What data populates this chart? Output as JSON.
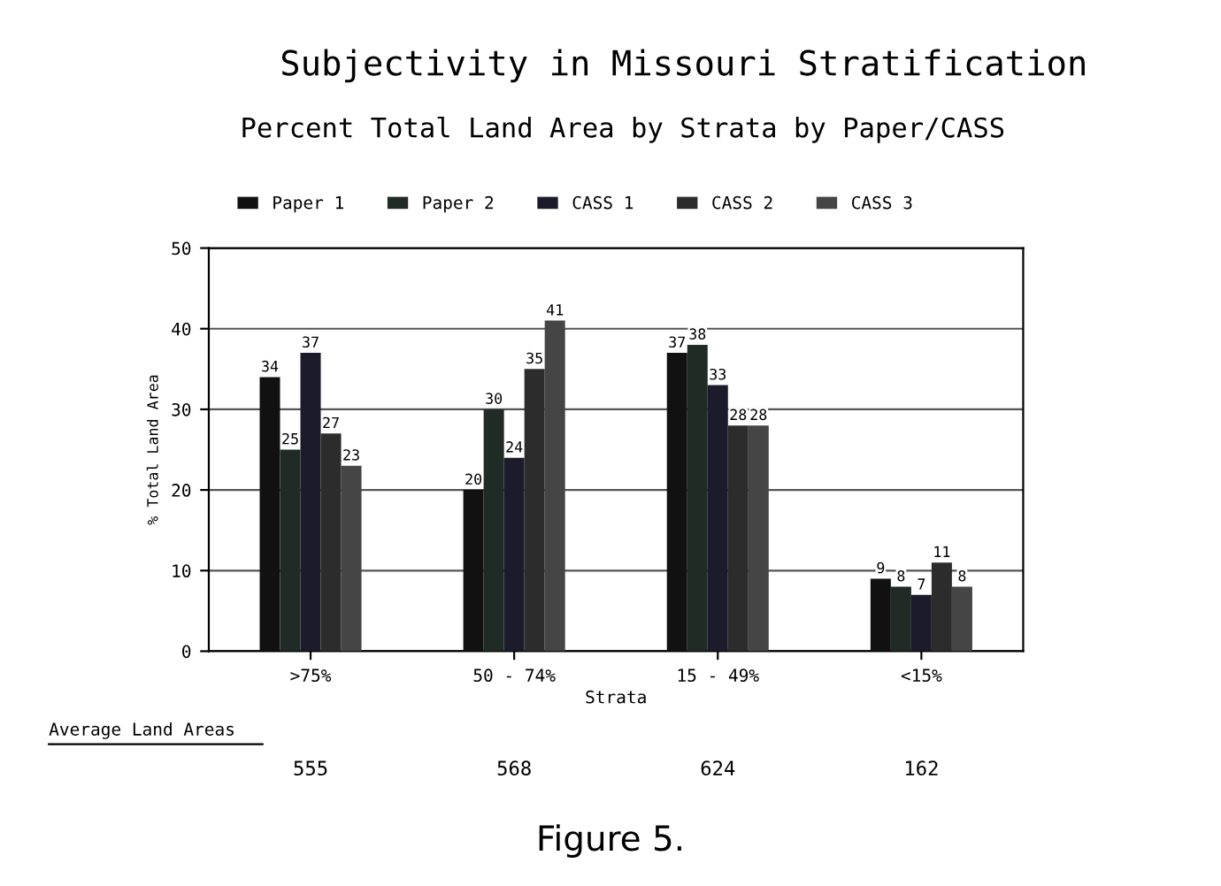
{
  "chart_data": {
    "type": "bar",
    "title": "Subjectivity in Missouri Stratification",
    "subtitle": "Percent Total Land Area by Strata by Paper/CASS",
    "xlabel": "Strata",
    "ylabel": "% Total Land Area",
    "categories": [
      ">75%",
      "50 - 74%",
      "15 - 49%",
      "<15%"
    ],
    "series": [
      {
        "name": "Paper 1",
        "color": "#111111",
        "values": [
          34,
          20,
          37,
          9
        ]
      },
      {
        "name": "Paper 2",
        "color": "#1f2b24",
        "values": [
          25,
          30,
          38,
          8
        ]
      },
      {
        "name": "CASS 1",
        "color": "#1b1b2b",
        "values": [
          37,
          24,
          33,
          7
        ]
      },
      {
        "name": "CASS 2",
        "color": "#2c2c2c",
        "values": [
          27,
          35,
          28,
          11
        ]
      },
      {
        "name": "CASS 3",
        "color": "#454545",
        "values": [
          23,
          41,
          28,
          8
        ]
      }
    ],
    "ylim": [
      0,
      50
    ],
    "yticks": [
      0,
      10,
      20,
      30,
      40,
      50
    ],
    "grid": "y",
    "legend": "top",
    "data_labels": true,
    "annotations": [
      "Average Land Areas",
      "555",
      "568",
      "624",
      "162",
      "Figure 5."
    ]
  }
}
